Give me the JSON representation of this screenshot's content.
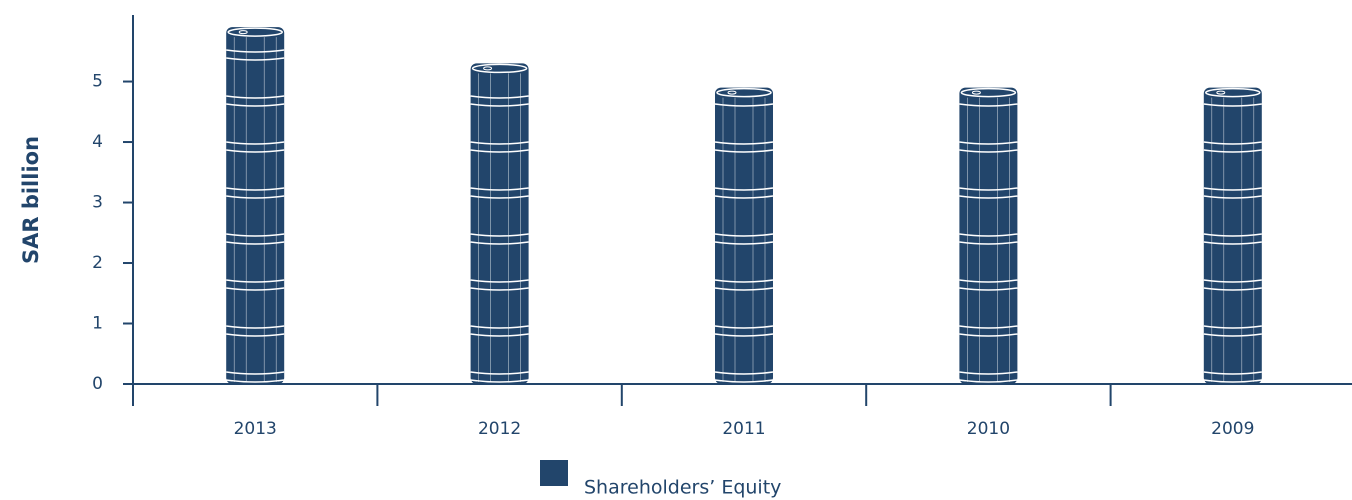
{
  "chart_data": {
    "type": "bar",
    "y_label": "SAR billion",
    "categories": [
      "2013",
      "2012",
      "2011",
      "2010",
      "2009"
    ],
    "series": [
      {
        "name": "Shareholders’ Equity",
        "color": "#22456b",
        "values": [
          5.9,
          5.3,
          4.9,
          4.9,
          4.9
        ]
      }
    ],
    "ylim": [
      0,
      6.1
    ],
    "yticks": [
      0,
      1,
      2,
      3,
      4,
      5
    ],
    "grid": false,
    "legend": "bottom"
  }
}
